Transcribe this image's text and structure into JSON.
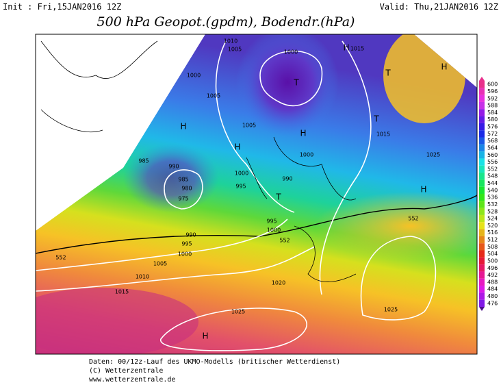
{
  "header": {
    "init": "Init : Fri,15JAN2016 12Z",
    "valid": "Valid: Thu,21JAN2016 12Z",
    "title": "500 hPa Geopot.(gpdm), Bodendr.(hPa)"
  },
  "map": {
    "labels": [
      "1010",
      "1005",
      "1000",
      "H",
      "1015",
      "H",
      "T",
      "T",
      "1000",
      "1005",
      "H",
      "1005",
      "T",
      "1015",
      "H",
      "H",
      "1000",
      "985",
      "990",
      "1000",
      "1025",
      "985",
      "990",
      "995",
      "980",
      "H",
      "975",
      "T",
      "995",
      "1000",
      "552",
      "990",
      "552",
      "995",
      "1000",
      "552",
      "1005",
      "1010",
      "1020",
      "1015",
      "1025",
      "1025",
      "H"
    ]
  },
  "colorbar": {
    "ticks": [
      600,
      596,
      592,
      588,
      584,
      580,
      576,
      572,
      568,
      564,
      560,
      556,
      552,
      548,
      544,
      540,
      536,
      532,
      528,
      524,
      520,
      516,
      512,
      508,
      504,
      500,
      496,
      492,
      488,
      484,
      480,
      476
    ]
  },
  "footer": {
    "lines": [
      "Daten: 00/12z-Lauf des UKMO-Modells (britischer Wetterdienst)",
      "(C) Wetterzentrale",
      "www.wetterzentrale.de"
    ]
  }
}
